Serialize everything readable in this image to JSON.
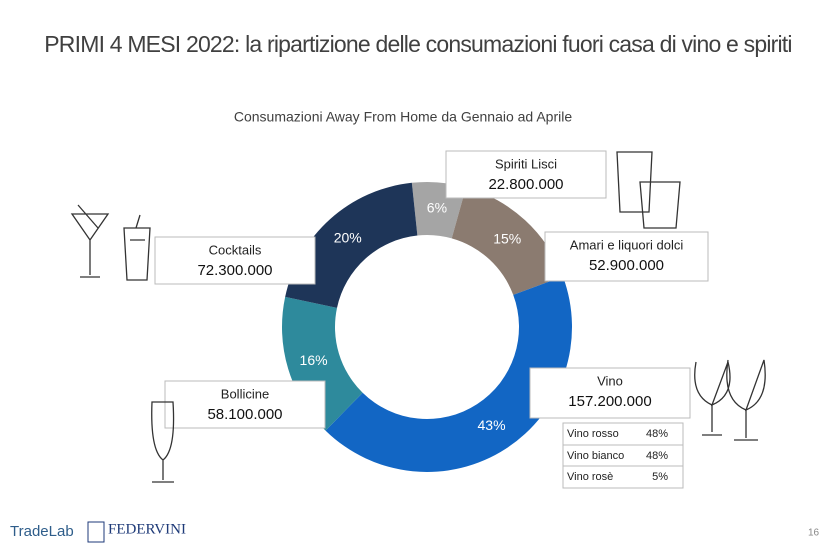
{
  "header": {
    "title": "PRIMI 4 MESI 2022:  la ripartizione delle consumazioni fuori casa di vino e spiriti"
  },
  "chart_data": {
    "type": "pie",
    "donut": true,
    "title": "Consumazioni Away From Home da Gennaio ad Aprile",
    "categories": [
      "Spiriti Lisci",
      "Amari e liquori dolci",
      "Vino",
      "Bollicine",
      "Cocktails"
    ],
    "values": [
      6,
      15,
      43,
      16,
      20
    ],
    "value_labels": [
      "6%",
      "15%",
      "43%",
      "16%",
      "20%"
    ],
    "amounts": [
      "22.800.000",
      "52.900.000",
      "157.200.000",
      "58.100.000",
      "72.300.000"
    ],
    "colors": [
      "#a5a5a5",
      "#8b7b70",
      "#1266c4",
      "#2e8a9c",
      "#1e3558"
    ]
  },
  "wine_breakdown": {
    "rows": [
      [
        "Vino rosso",
        "48%"
      ],
      [
        "Vino bianco",
        "48%"
      ],
      [
        "Vino rosè",
        "5%"
      ]
    ]
  },
  "footer": {
    "brand1": "TradeLab",
    "brand2": "FEDERVINI",
    "page": "16"
  }
}
